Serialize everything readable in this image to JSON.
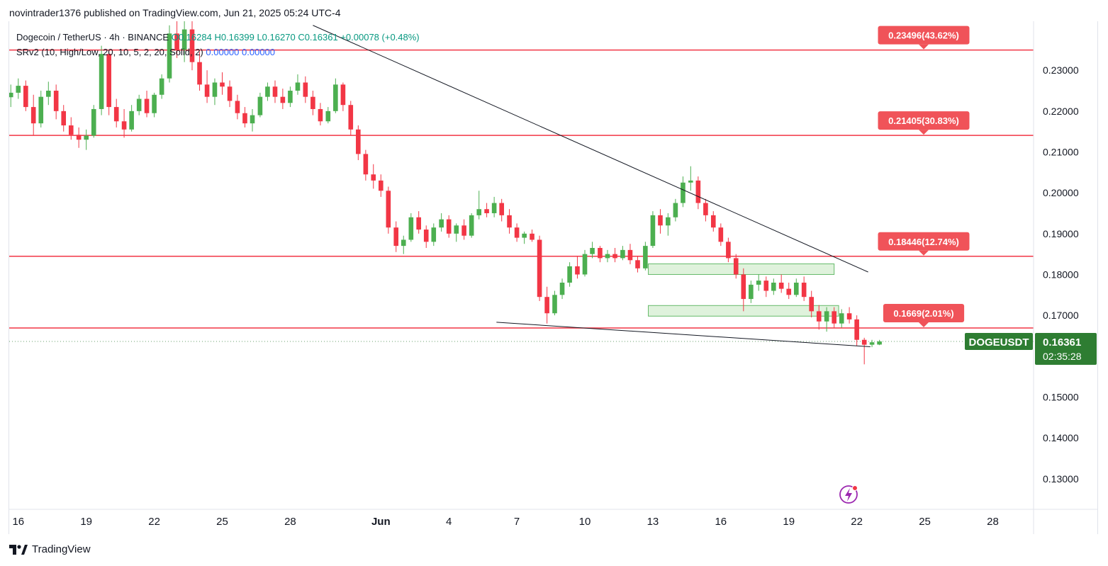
{
  "header": {
    "published_line": "novintrader1376 published on TradingView.com, Jun 21, 2025 05:24 UTC-4"
  },
  "legend": {
    "symbol": "Dogecoin / TetherUS · 4h · BINANCE",
    "open": "O0.16284",
    "high": "H0.16399",
    "low": "L0.16270",
    "close": "C0.16361",
    "change": "+0.00078 (+0.48%)",
    "indicator": "SRv2 (10, High/Low, 20, 10, 5, 2, 20, Solid, 2)",
    "indicator_val1": "0.00000",
    "indicator_val2": "0.00000"
  },
  "price_tag": {
    "symbol": "DOGEUSDT",
    "price": "0.16361",
    "countdown": "02:35:28"
  },
  "footer": {
    "brand": "TradingView"
  },
  "colors": {
    "up": "#089981",
    "up_body": "#4caf50",
    "down": "#f23645",
    "level_line": "#f23645",
    "label_bg": "#f05359",
    "zone_fill": "#dff2dc",
    "zone_border": "#66bb6a",
    "trend_line": "#131722",
    "price_tag_bg": "#2e7d32"
  },
  "chart_data": {
    "type": "candlestick",
    "symbol": "DOGEUSDT",
    "timeframe": "4h",
    "exchange": "BINANCE",
    "y_axis": {
      "ticks": [
        "0.23000",
        "0.22000",
        "0.21000",
        "0.20000",
        "0.19000",
        "0.18000",
        "0.17000",
        "0.15000",
        "0.14000",
        "0.13000"
      ],
      "tick_values": [
        0.23,
        0.22,
        0.21,
        0.2,
        0.19,
        0.18,
        0.17,
        0.15,
        0.14,
        0.13
      ],
      "range": [
        0.1225,
        0.242
      ]
    },
    "x_axis": {
      "ticks": [
        "16",
        "19",
        "22",
        "25",
        "28",
        "Jun",
        "4",
        "7",
        "10",
        "13",
        "16",
        "19",
        "22",
        "25",
        "28"
      ],
      "tick_days": [
        0,
        3,
        6,
        9,
        12,
        16,
        19,
        22,
        25,
        28,
        31,
        34,
        37,
        40,
        43
      ],
      "range_days": [
        -0.4,
        44.8
      ]
    },
    "levels": [
      {
        "value": 0.23496,
        "label": "0.23496(43.62%)"
      },
      {
        "value": 0.21405,
        "label": "0.21405(30.83%)"
      },
      {
        "value": 0.18446,
        "label": "0.18446(12.74%)"
      },
      {
        "value": 0.1669,
        "label": "0.1669(2.01%)"
      }
    ],
    "zones": [
      {
        "day_start": 27.8,
        "day_end": 36.0,
        "low": 0.18,
        "high": 0.1826
      },
      {
        "day_start": 27.8,
        "day_end": 36.2,
        "low": 0.1698,
        "high": 0.1724
      }
    ],
    "trend_lines": [
      {
        "from": [
          13.0,
          0.241
        ],
        "to": [
          37.5,
          0.1806
        ]
      },
      {
        "from": [
          21.1,
          0.1683
        ],
        "to": [
          37.6,
          0.1623
        ]
      }
    ],
    "current_price": 0.16361,
    "candles": [
      {
        "t": -0.33,
        "o": 0.2234,
        "h": 0.2265,
        "l": 0.221,
        "c": 0.2245
      },
      {
        "t": 0.0,
        "o": 0.2245,
        "h": 0.228,
        "l": 0.223,
        "c": 0.2262
      },
      {
        "t": 0.33,
        "o": 0.2262,
        "h": 0.2275,
        "l": 0.22,
        "c": 0.221
      },
      {
        "t": 0.67,
        "o": 0.221,
        "h": 0.224,
        "l": 0.214,
        "c": 0.217
      },
      {
        "t": 1.0,
        "o": 0.217,
        "h": 0.225,
        "l": 0.216,
        "c": 0.2235
      },
      {
        "t": 1.33,
        "o": 0.2235,
        "h": 0.2272,
        "l": 0.2215,
        "c": 0.225
      },
      {
        "t": 1.67,
        "o": 0.225,
        "h": 0.2265,
        "l": 0.218,
        "c": 0.22
      },
      {
        "t": 2.0,
        "o": 0.22,
        "h": 0.2215,
        "l": 0.215,
        "c": 0.2165
      },
      {
        "t": 2.33,
        "o": 0.2165,
        "h": 0.2185,
        "l": 0.213,
        "c": 0.2142
      },
      {
        "t": 2.67,
        "o": 0.2142,
        "h": 0.216,
        "l": 0.211,
        "c": 0.213
      },
      {
        "t": 3.0,
        "o": 0.213,
        "h": 0.2155,
        "l": 0.2105,
        "c": 0.214
      },
      {
        "t": 3.33,
        "o": 0.214,
        "h": 0.2215,
        "l": 0.2135,
        "c": 0.2205
      },
      {
        "t": 3.67,
        "o": 0.2205,
        "h": 0.236,
        "l": 0.219,
        "c": 0.234
      },
      {
        "t": 4.0,
        "o": 0.234,
        "h": 0.235,
        "l": 0.219,
        "c": 0.221
      },
      {
        "t": 4.33,
        "o": 0.221,
        "h": 0.223,
        "l": 0.216,
        "c": 0.2175
      },
      {
        "t": 4.67,
        "o": 0.2175,
        "h": 0.2205,
        "l": 0.2135,
        "c": 0.2155
      },
      {
        "t": 5.0,
        "o": 0.2155,
        "h": 0.2215,
        "l": 0.215,
        "c": 0.22
      },
      {
        "t": 5.33,
        "o": 0.22,
        "h": 0.224,
        "l": 0.219,
        "c": 0.223
      },
      {
        "t": 5.67,
        "o": 0.223,
        "h": 0.225,
        "l": 0.2185,
        "c": 0.2195
      },
      {
        "t": 6.0,
        "o": 0.2195,
        "h": 0.2245,
        "l": 0.2185,
        "c": 0.224
      },
      {
        "t": 6.33,
        "o": 0.224,
        "h": 0.229,
        "l": 0.223,
        "c": 0.228
      },
      {
        "t": 6.67,
        "o": 0.228,
        "h": 0.241,
        "l": 0.227,
        "c": 0.239
      },
      {
        "t": 7.0,
        "o": 0.239,
        "h": 0.242,
        "l": 0.233,
        "c": 0.235
      },
      {
        "t": 7.33,
        "o": 0.235,
        "h": 0.242,
        "l": 0.232,
        "c": 0.24
      },
      {
        "t": 7.67,
        "o": 0.24,
        "h": 0.242,
        "l": 0.23,
        "c": 0.232
      },
      {
        "t": 8.0,
        "o": 0.232,
        "h": 0.2345,
        "l": 0.225,
        "c": 0.2265
      },
      {
        "t": 8.33,
        "o": 0.2265,
        "h": 0.23,
        "l": 0.222,
        "c": 0.2235
      },
      {
        "t": 8.67,
        "o": 0.2235,
        "h": 0.228,
        "l": 0.2215,
        "c": 0.227
      },
      {
        "t": 9.0,
        "o": 0.227,
        "h": 0.2295,
        "l": 0.224,
        "c": 0.226
      },
      {
        "t": 9.33,
        "o": 0.226,
        "h": 0.2275,
        "l": 0.221,
        "c": 0.2225
      },
      {
        "t": 9.67,
        "o": 0.2225,
        "h": 0.224,
        "l": 0.218,
        "c": 0.2195
      },
      {
        "t": 10.0,
        "o": 0.2195,
        "h": 0.221,
        "l": 0.216,
        "c": 0.217
      },
      {
        "t": 10.33,
        "o": 0.217,
        "h": 0.2205,
        "l": 0.215,
        "c": 0.219
      },
      {
        "t": 10.67,
        "o": 0.219,
        "h": 0.2245,
        "l": 0.2185,
        "c": 0.2235
      },
      {
        "t": 11.0,
        "o": 0.2235,
        "h": 0.227,
        "l": 0.2225,
        "c": 0.226
      },
      {
        "t": 11.33,
        "o": 0.226,
        "h": 0.2275,
        "l": 0.222,
        "c": 0.2235
      },
      {
        "t": 11.67,
        "o": 0.2235,
        "h": 0.2255,
        "l": 0.2205,
        "c": 0.222
      },
      {
        "t": 12.0,
        "o": 0.222,
        "h": 0.226,
        "l": 0.221,
        "c": 0.225
      },
      {
        "t": 12.33,
        "o": 0.225,
        "h": 0.229,
        "l": 0.224,
        "c": 0.227
      },
      {
        "t": 12.67,
        "o": 0.227,
        "h": 0.2285,
        "l": 0.222,
        "c": 0.2235
      },
      {
        "t": 13.0,
        "o": 0.2235,
        "h": 0.225,
        "l": 0.219,
        "c": 0.2205
      },
      {
        "t": 13.33,
        "o": 0.2205,
        "h": 0.222,
        "l": 0.2165,
        "c": 0.2175
      },
      {
        "t": 13.67,
        "o": 0.2175,
        "h": 0.221,
        "l": 0.217,
        "c": 0.22
      },
      {
        "t": 14.0,
        "o": 0.22,
        "h": 0.228,
        "l": 0.2195,
        "c": 0.2265
      },
      {
        "t": 14.33,
        "o": 0.2265,
        "h": 0.227,
        "l": 0.22,
        "c": 0.2215
      },
      {
        "t": 14.67,
        "o": 0.2215,
        "h": 0.2225,
        "l": 0.214,
        "c": 0.2155
      },
      {
        "t": 15.0,
        "o": 0.2155,
        "h": 0.2165,
        "l": 0.208,
        "c": 0.2095
      },
      {
        "t": 15.33,
        "o": 0.2095,
        "h": 0.2105,
        "l": 0.203,
        "c": 0.2045
      },
      {
        "t": 15.67,
        "o": 0.2045,
        "h": 0.207,
        "l": 0.201,
        "c": 0.203
      },
      {
        "t": 16.0,
        "o": 0.203,
        "h": 0.2045,
        "l": 0.199,
        "c": 0.2005
      },
      {
        "t": 16.33,
        "o": 0.2005,
        "h": 0.2015,
        "l": 0.19,
        "c": 0.1915
      },
      {
        "t": 16.67,
        "o": 0.1915,
        "h": 0.193,
        "l": 0.1855,
        "c": 0.187
      },
      {
        "t": 17.0,
        "o": 0.187,
        "h": 0.1895,
        "l": 0.185,
        "c": 0.1885
      },
      {
        "t": 17.33,
        "o": 0.1885,
        "h": 0.195,
        "l": 0.188,
        "c": 0.194
      },
      {
        "t": 17.67,
        "o": 0.194,
        "h": 0.1955,
        "l": 0.19,
        "c": 0.191
      },
      {
        "t": 18.0,
        "o": 0.191,
        "h": 0.192,
        "l": 0.1865,
        "c": 0.188
      },
      {
        "t": 18.33,
        "o": 0.188,
        "h": 0.1925,
        "l": 0.187,
        "c": 0.1915
      },
      {
        "t": 18.67,
        "o": 0.1915,
        "h": 0.195,
        "l": 0.1905,
        "c": 0.1935
      },
      {
        "t": 19.0,
        "o": 0.1935,
        "h": 0.1945,
        "l": 0.189,
        "c": 0.19
      },
      {
        "t": 19.33,
        "o": 0.19,
        "h": 0.1925,
        "l": 0.188,
        "c": 0.192
      },
      {
        "t": 19.67,
        "o": 0.192,
        "h": 0.1935,
        "l": 0.1885,
        "c": 0.1895
      },
      {
        "t": 20.0,
        "o": 0.1895,
        "h": 0.195,
        "l": 0.189,
        "c": 0.1945
      },
      {
        "t": 20.33,
        "o": 0.1945,
        "h": 0.2005,
        "l": 0.1935,
        "c": 0.196
      },
      {
        "t": 20.67,
        "o": 0.196,
        "h": 0.1975,
        "l": 0.194,
        "c": 0.195
      },
      {
        "t": 21.0,
        "o": 0.195,
        "h": 0.199,
        "l": 0.194,
        "c": 0.1975
      },
      {
        "t": 21.33,
        "o": 0.1975,
        "h": 0.1985,
        "l": 0.193,
        "c": 0.1945
      },
      {
        "t": 21.67,
        "o": 0.1945,
        "h": 0.196,
        "l": 0.19,
        "c": 0.1915
      },
      {
        "t": 22.0,
        "o": 0.1915,
        "h": 0.1925,
        "l": 0.188,
        "c": 0.189
      },
      {
        "t": 22.33,
        "o": 0.189,
        "h": 0.1905,
        "l": 0.1875,
        "c": 0.19
      },
      {
        "t": 22.67,
        "o": 0.19,
        "h": 0.191,
        "l": 0.188,
        "c": 0.1885
      },
      {
        "t": 23.0,
        "o": 0.1885,
        "h": 0.1895,
        "l": 0.1735,
        "c": 0.1745
      },
      {
        "t": 23.33,
        "o": 0.1745,
        "h": 0.177,
        "l": 0.168,
        "c": 0.1705
      },
      {
        "t": 23.67,
        "o": 0.1705,
        "h": 0.176,
        "l": 0.17,
        "c": 0.175
      },
      {
        "t": 24.0,
        "o": 0.175,
        "h": 0.179,
        "l": 0.174,
        "c": 0.178
      },
      {
        "t": 24.33,
        "o": 0.178,
        "h": 0.183,
        "l": 0.177,
        "c": 0.182
      },
      {
        "t": 24.67,
        "o": 0.182,
        "h": 0.1845,
        "l": 0.179,
        "c": 0.18
      },
      {
        "t": 25.0,
        "o": 0.18,
        "h": 0.186,
        "l": 0.1795,
        "c": 0.185
      },
      {
        "t": 25.33,
        "o": 0.185,
        "h": 0.188,
        "l": 0.184,
        "c": 0.1865
      },
      {
        "t": 25.67,
        "o": 0.1865,
        "h": 0.187,
        "l": 0.183,
        "c": 0.184
      },
      {
        "t": 26.0,
        "o": 0.184,
        "h": 0.186,
        "l": 0.183,
        "c": 0.185
      },
      {
        "t": 26.33,
        "o": 0.185,
        "h": 0.1865,
        "l": 0.183,
        "c": 0.184
      },
      {
        "t": 26.67,
        "o": 0.184,
        "h": 0.187,
        "l": 0.1835,
        "c": 0.186
      },
      {
        "t": 27.0,
        "o": 0.186,
        "h": 0.1875,
        "l": 0.1825,
        "c": 0.1835
      },
      {
        "t": 27.33,
        "o": 0.1835,
        "h": 0.1845,
        "l": 0.1805,
        "c": 0.1815
      },
      {
        "t": 27.67,
        "o": 0.1815,
        "h": 0.188,
        "l": 0.181,
        "c": 0.187
      },
      {
        "t": 28.0,
        "o": 0.187,
        "h": 0.1955,
        "l": 0.1865,
        "c": 0.1945
      },
      {
        "t": 28.33,
        "o": 0.1945,
        "h": 0.196,
        "l": 0.19,
        "c": 0.192
      },
      {
        "t": 28.67,
        "o": 0.192,
        "h": 0.195,
        "l": 0.1895,
        "c": 0.194
      },
      {
        "t": 29.0,
        "o": 0.194,
        "h": 0.1985,
        "l": 0.193,
        "c": 0.1975
      },
      {
        "t": 29.33,
        "o": 0.1975,
        "h": 0.204,
        "l": 0.1965,
        "c": 0.2025
      },
      {
        "t": 29.67,
        "o": 0.2025,
        "h": 0.2065,
        "l": 0.2005,
        "c": 0.203
      },
      {
        "t": 30.0,
        "o": 0.203,
        "h": 0.204,
        "l": 0.196,
        "c": 0.1975
      },
      {
        "t": 30.33,
        "o": 0.1975,
        "h": 0.1985,
        "l": 0.193,
        "c": 0.1945
      },
      {
        "t": 30.67,
        "o": 0.1945,
        "h": 0.1955,
        "l": 0.1905,
        "c": 0.1915
      },
      {
        "t": 31.0,
        "o": 0.1915,
        "h": 0.1925,
        "l": 0.187,
        "c": 0.188
      },
      {
        "t": 31.33,
        "o": 0.188,
        "h": 0.189,
        "l": 0.183,
        "c": 0.184
      },
      {
        "t": 31.67,
        "o": 0.184,
        "h": 0.185,
        "l": 0.179,
        "c": 0.18
      },
      {
        "t": 32.0,
        "o": 0.18,
        "h": 0.1815,
        "l": 0.171,
        "c": 0.174
      },
      {
        "t": 32.33,
        "o": 0.174,
        "h": 0.1785,
        "l": 0.173,
        "c": 0.1775
      },
      {
        "t": 32.67,
        "o": 0.1775,
        "h": 0.18,
        "l": 0.176,
        "c": 0.1785
      },
      {
        "t": 33.0,
        "o": 0.1785,
        "h": 0.1795,
        "l": 0.1745,
        "c": 0.176
      },
      {
        "t": 33.33,
        "o": 0.176,
        "h": 0.179,
        "l": 0.175,
        "c": 0.178
      },
      {
        "t": 33.67,
        "o": 0.178,
        "h": 0.18,
        "l": 0.1755,
        "c": 0.1765
      },
      {
        "t": 34.0,
        "o": 0.1765,
        "h": 0.178,
        "l": 0.174,
        "c": 0.175
      },
      {
        "t": 34.33,
        "o": 0.175,
        "h": 0.179,
        "l": 0.1745,
        "c": 0.178
      },
      {
        "t": 34.67,
        "o": 0.178,
        "h": 0.1795,
        "l": 0.1735,
        "c": 0.1745
      },
      {
        "t": 35.0,
        "o": 0.1745,
        "h": 0.176,
        "l": 0.1695,
        "c": 0.171
      },
      {
        "t": 35.33,
        "o": 0.171,
        "h": 0.1725,
        "l": 0.1665,
        "c": 0.1685
      },
      {
        "t": 35.67,
        "o": 0.1685,
        "h": 0.172,
        "l": 0.166,
        "c": 0.171
      },
      {
        "t": 36.0,
        "o": 0.171,
        "h": 0.172,
        "l": 0.167,
        "c": 0.168
      },
      {
        "t": 36.33,
        "o": 0.168,
        "h": 0.1715,
        "l": 0.167,
        "c": 0.1705
      },
      {
        "t": 36.67,
        "o": 0.1705,
        "h": 0.172,
        "l": 0.168,
        "c": 0.169
      },
      {
        "t": 37.0,
        "o": 0.169,
        "h": 0.17,
        "l": 0.1625,
        "c": 0.164
      },
      {
        "t": 37.33,
        "o": 0.164,
        "h": 0.1645,
        "l": 0.158,
        "c": 0.1628
      },
      {
        "t": 37.67,
        "o": 0.1628,
        "h": 0.164,
        "l": 0.1622,
        "c": 0.1634
      },
      {
        "t": 38.0,
        "o": 0.16284,
        "h": 0.16399,
        "l": 0.1627,
        "c": 0.16361
      }
    ]
  }
}
